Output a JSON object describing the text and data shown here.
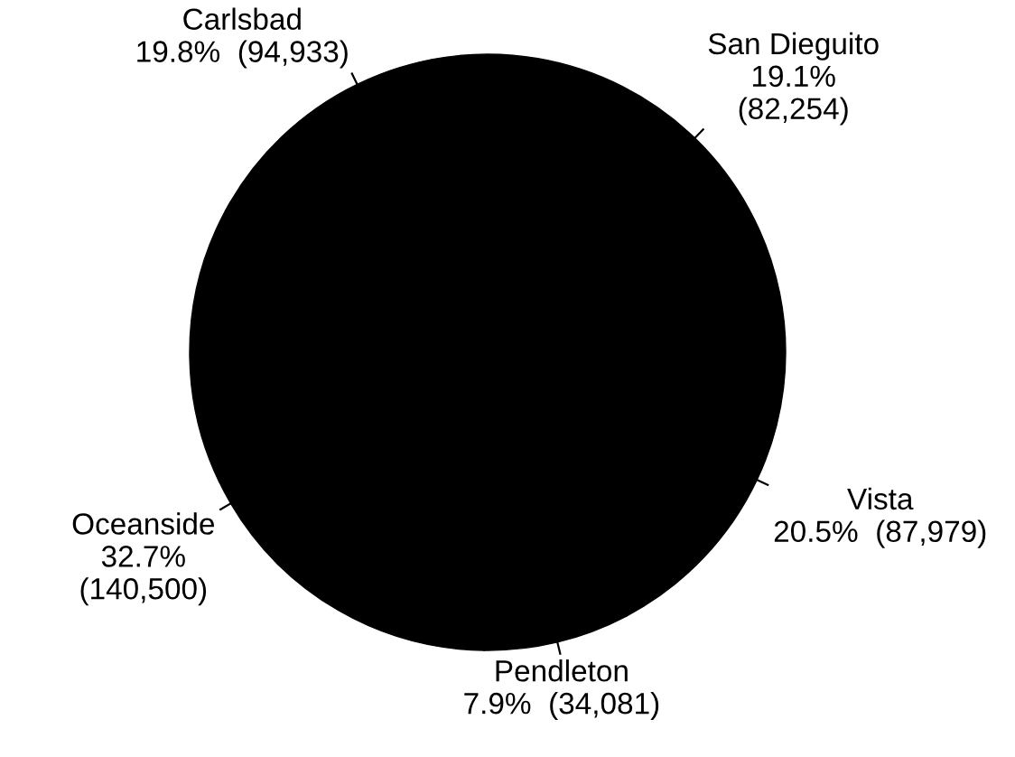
{
  "chart_data": {
    "type": "pie",
    "categories": [
      "Carlsbad",
      "San Dieguito",
      "Vista",
      "Pendleton",
      "Oceanside"
    ],
    "values": [
      19.8,
      19.1,
      20.5,
      7.9,
      32.7
    ],
    "value_labels": [
      "19.8%  (94,933)",
      "19.1%\n(82,254)",
      "20.5%  (87,979)",
      "7.9%  (34,081)",
      "32.7%\n(140,500)"
    ],
    "colors": [
      "#000000",
      "#000000",
      "#000000",
      "#000000",
      "#000000"
    ]
  }
}
